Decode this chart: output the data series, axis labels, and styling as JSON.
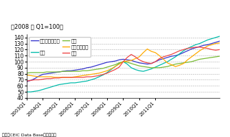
{
  "title": "（2008 年 Q1=100）",
  "source": "資料：CEIC Data Baseから作成。",
  "ylim": [
    40,
    145
  ],
  "yticks": [
    40,
    50,
    60,
    70,
    80,
    90,
    100,
    110,
    120,
    130,
    140
  ],
  "x_labels": [
    "2003Q1",
    "2004Q1",
    "2005Q1",
    "2006Q1",
    "2007Q1",
    "2008Q1",
    "2009Q1",
    "2010Q1",
    "2011Q1"
  ],
  "series": {
    "豪州８都市平均": {
      "color": "#3333cc",
      "data": [
        67,
        69,
        72,
        76,
        79,
        80,
        81,
        82,
        83,
        84,
        85,
        85,
        86,
        87,
        88,
        90,
        91,
        93,
        95,
        97,
        99,
        100,
        101,
        103,
        104,
        103,
        102,
        100,
        98,
        97,
        96,
        97,
        100,
        103,
        105,
        107,
        109,
        110,
        112,
        115,
        118,
        121,
        123,
        125,
        127,
        128,
        130,
        132,
        134
      ]
    },
    "香港": {
      "color": "#00bbaa",
      "data": [
        50,
        50,
        51,
        52,
        54,
        56,
        58,
        60,
        62,
        63,
        64,
        65,
        65,
        66,
        67,
        68,
        70,
        72,
        75,
        78,
        82,
        87,
        92,
        97,
        100,
        96,
        90,
        87,
        85,
        84,
        86,
        88,
        91,
        94,
        97,
        100,
        104,
        108,
        113,
        118,
        122,
        125,
        128,
        130,
        133,
        136,
        138,
        140,
        142
      ]
    },
    "韓国": {
      "color": "#77bb33",
      "data": [
        81,
        82,
        82,
        82,
        82,
        83,
        83,
        83,
        83,
        84,
        84,
        84,
        84,
        84,
        85,
        85,
        86,
        87,
        88,
        89,
        91,
        93,
        95,
        98,
        100,
        99,
        97,
        95,
        93,
        92,
        91,
        90,
        90,
        90,
        91,
        92,
        94,
        96,
        97,
        98,
        99,
        100,
        102,
        104,
        105,
        106,
        107,
        108,
        109
      ]
    },
    "シンガポール": {
      "color": "#ffaa00",
      "data": [
        78,
        77,
        76,
        75,
        75,
        75,
        75,
        74,
        74,
        74,
        74,
        74,
        75,
        76,
        77,
        78,
        79,
        80,
        81,
        83,
        85,
        88,
        92,
        96,
        100,
        101,
        102,
        105,
        108,
        115,
        121,
        117,
        115,
        110,
        104,
        98,
        95,
        92,
        94,
        97,
        103,
        108,
        113,
        118,
        122,
        126,
        128,
        130,
        131
      ]
    },
    "台湾": {
      "color": "#ee4444",
      "data": [
        68,
        69,
        70,
        70,
        71,
        72,
        72,
        73,
        73,
        74,
        74,
        74,
        74,
        74,
        74,
        75,
        75,
        76,
        77,
        79,
        81,
        84,
        87,
        91,
        100,
        107,
        112,
        108,
        103,
        100,
        98,
        97,
        100,
        105,
        108,
        110,
        112,
        115,
        118,
        120,
        122,
        123,
        124,
        124,
        123,
        122,
        120,
        119,
        120
      ]
    }
  },
  "legend_order": [
    "豪州８都市平均",
    "香港",
    "韓国",
    "シンガポール",
    "台湾"
  ]
}
